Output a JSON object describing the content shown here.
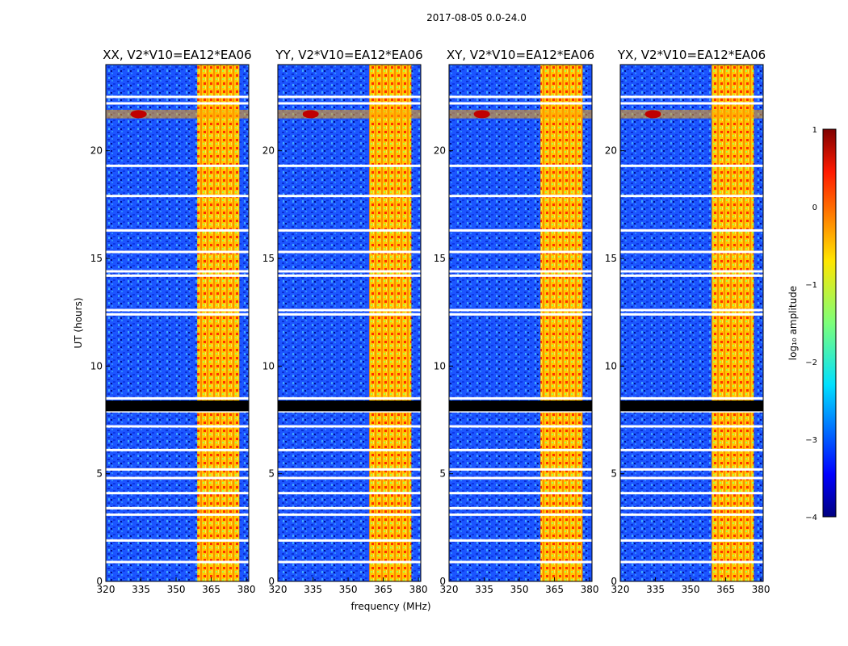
{
  "figure_title": "2017-08-05 0.0-24.0",
  "chart_data": {
    "type": "heatmap",
    "title": "2017-08-05 0.0-24.0",
    "xlabel": "frequency (MHz)",
    "ylabel": "UT (hours)",
    "xlim": [
      320,
      381
    ],
    "ylim": [
      0,
      24
    ],
    "x_ticks": [
      320,
      335,
      350,
      365,
      380
    ],
    "y_ticks": [
      0,
      5,
      10,
      15,
      20
    ],
    "panels": [
      {
        "title": "XX, V2*V10=EA12*EA06",
        "rfi_band_mhz": [
          359,
          377
        ]
      },
      {
        "title": "YY, V2*V10=EA12*EA06",
        "rfi_band_mhz": [
          359,
          377
        ]
      },
      {
        "title": "XY, V2*V10=EA12*EA06",
        "rfi_band_mhz": [
          359,
          377
        ]
      },
      {
        "title": "YX, V2*V10=EA12*EA06",
        "rfi_band_mhz": [
          359,
          377
        ]
      }
    ],
    "flagged_rows_hours": [
      0.9,
      1.9,
      3.1,
      3.4,
      4.1,
      4.8,
      5.2,
      6.1,
      7.2,
      7.9,
      8.1,
      8.3,
      8.5,
      12.4,
      12.6,
      14.2,
      14.4,
      15.3,
      16.3,
      17.9,
      19.3,
      22.2,
      22.5
    ],
    "colorbar": {
      "label": "log₁₀ amplitude",
      "range": [
        -4,
        1
      ],
      "ticks": [
        1,
        0,
        -1,
        -2,
        -3,
        -4
      ],
      "tick_labels": [
        "1",
        "0",
        "−1",
        "−2",
        "−3",
        "−4"
      ],
      "colormap": "jet"
    }
  },
  "colors": {
    "low": "#0000a8",
    "background_band": "#1f60ff",
    "rfi_band": "#ffd400",
    "flag": "#ffffff",
    "hot": "#d00000"
  }
}
